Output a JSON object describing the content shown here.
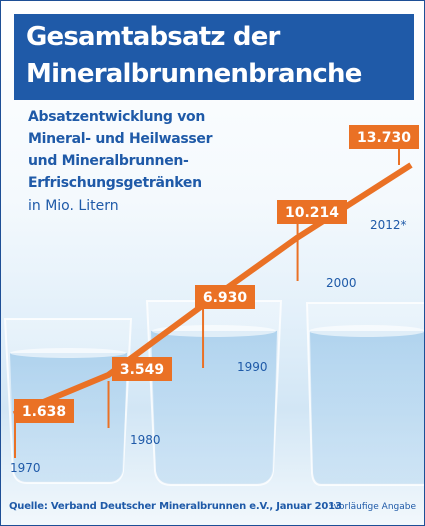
{
  "header": {
    "title_line1": "Gesamtabsatz der",
    "title_line2": "Mineralbrunnenbranche"
  },
  "subtitle_lines": [
    "Absatzentwicklung von",
    "Mineral- und Heilwasser",
    "und Mineralbrunnen-",
    "Erfrischungsgetränken"
  ],
  "unit": "in Mio. Litern",
  "chart_data": {
    "type": "line",
    "title": "",
    "categories": [
      "1970",
      "1980",
      "1990",
      "2000",
      "2012*"
    ],
    "x": [
      1970,
      1980,
      1990,
      2000,
      2012
    ],
    "values": [
      1638,
      3549,
      6930,
      10214,
      13730
    ],
    "value_labels": [
      "1.638",
      "3.549",
      "6.930",
      "10.214",
      "13.730"
    ],
    "xlabel": "",
    "ylabel": "",
    "grid": false,
    "legend": "none",
    "colors": {
      "line": "#ea7125",
      "label_bg": "#ea7125",
      "label_text": "#ffffff",
      "year_text": "#1f5aa8"
    }
  },
  "footer": {
    "source": "Quelle: Verband Deutscher Mineralbrunnen e.V., Januar 2013",
    "footnote": "*vorläufige Angabe"
  },
  "colors": {
    "brand_blue": "#1f5aa8",
    "accent_orange": "#ea7125"
  }
}
